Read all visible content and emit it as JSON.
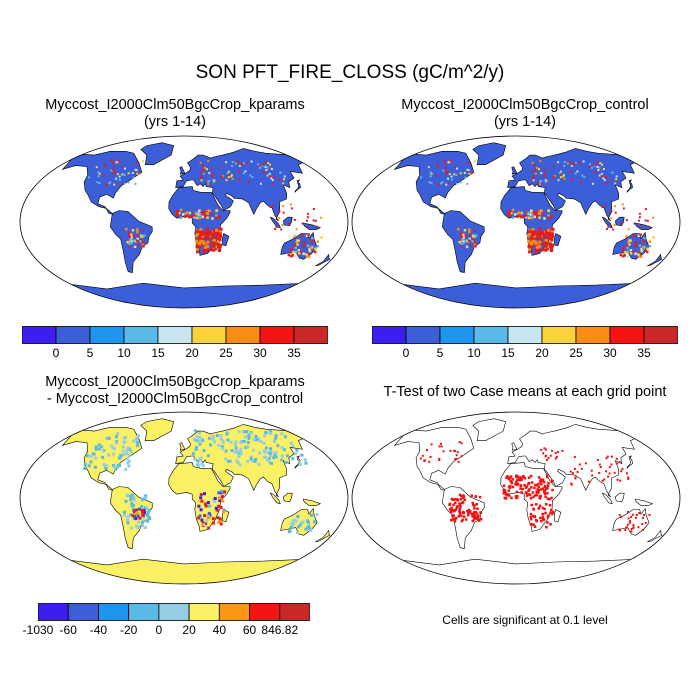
{
  "title": "SON PFT_FIRE_CLOSS (gC/m^2/y)",
  "panels": {
    "top_left": {
      "line1": "Myccost_I2000Clm50BgcCrop_kparams",
      "line2": "(yrs 1-14)"
    },
    "top_right": {
      "line1": "Myccost_I2000Clm50BgcCrop_control",
      "line2": "(yrs 1-14)"
    },
    "bottom_left": {
      "line1": "Myccost_I2000Clm50BgcCrop_kparams",
      "line2": "- Myccost_I2000Clm50BgcCrop_control"
    },
    "bottom_right": {
      "line1": "T-Test of two Case means at each grid point",
      "note": "Cells are significant at 0.1 level"
    }
  },
  "colorbars": {
    "absolute": {
      "colors": [
        "#3d1ef0",
        "#3c5ed8",
        "#1e96f0",
        "#5ab9e6",
        "#c8e6f0",
        "#fad23c",
        "#fa8c14",
        "#f51414",
        "#c82828"
      ],
      "labels": [
        "0",
        "5",
        "10",
        "15",
        "20",
        "25",
        "30",
        "35"
      ]
    },
    "difference": {
      "colors": [
        "#3d1ef0",
        "#3c5ed8",
        "#1e96f0",
        "#5ab9e6",
        "#96cde6",
        "#faf064",
        "#fa9614",
        "#f51414",
        "#c82828"
      ],
      "labels": [
        "-1030",
        "-60",
        "-40",
        "-20",
        "0",
        "20",
        "40",
        "60",
        "846.82"
      ]
    }
  },
  "map_colors": {
    "ocean": "#ffffff",
    "land_base_abs": "#3c5ed8",
    "land_base_diff": "#faf064",
    "coast": "#000000",
    "significant": "#f50f0f"
  }
}
